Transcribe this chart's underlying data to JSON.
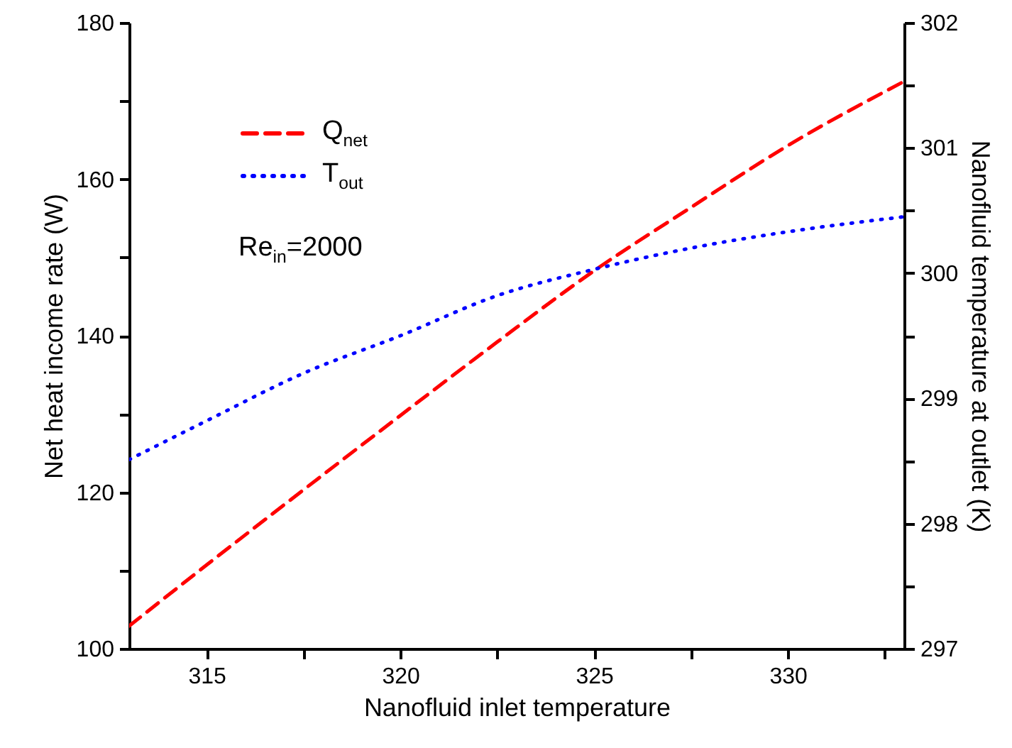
{
  "chart_data": {
    "type": "line",
    "xlabel": "Nanofluid inlet temperature",
    "ylabel": "Net heat income rate (W)",
    "y2label": "Nanofluid temperature at outlet (K)",
    "x": [
      313,
      315,
      317.5,
      320,
      322.5,
      325,
      327.5,
      330,
      333
    ],
    "series": [
      {
        "name": "Q$_{net}$",
        "color": "#ff0000",
        "line_style": "dashed",
        "values": [
          102.9,
          110.7,
          120.3,
          129.8,
          139.2,
          148.3,
          156.4,
          164.3,
          172.5
        ]
      },
      {
        "name": "T$_{out}$",
        "color": "#0000ff",
        "line_style": "dotted",
        "axis": "y2",
        "values": [
          298.51,
          298.82,
          299.2,
          299.5,
          299.82,
          300.03,
          300.2,
          300.33,
          300.45
        ]
      }
    ],
    "xlim": [
      313,
      333
    ],
    "xticks": [
      315,
      {
        "value": 317.5,
        "label": null
      },
      320,
      {
        "value": 322.5,
        "label": null
      },
      325,
      {
        "value": 327.5,
        "label": null
      },
      330,
      {
        "value": 332.5,
        "label": null
      }
    ],
    "ylim": [
      100,
      180
    ],
    "yticks": [
      100,
      {
        "value": 110,
        "label": null
      },
      120,
      {
        "value": 130,
        "label": null
      },
      140,
      {
        "value": 150,
        "label": null
      },
      160,
      {
        "value": 170,
        "label": null
      },
      180
    ],
    "y2lim": [
      297,
      302
    ],
    "y2ticks": [
      297,
      {
        "value": 297.5,
        "label": null
      },
      298,
      {
        "value": 298.5,
        "label": null
      },
      299,
      {
        "value": 299.5,
        "label": null
      },
      300,
      {
        "value": 300.5,
        "label": null
      },
      301,
      {
        "value": 301.5,
        "label": null
      },
      302
    ],
    "legend": "top left",
    "grid": false,
    "annotations": [
      "Re$_{in}$=2000"
    ]
  }
}
